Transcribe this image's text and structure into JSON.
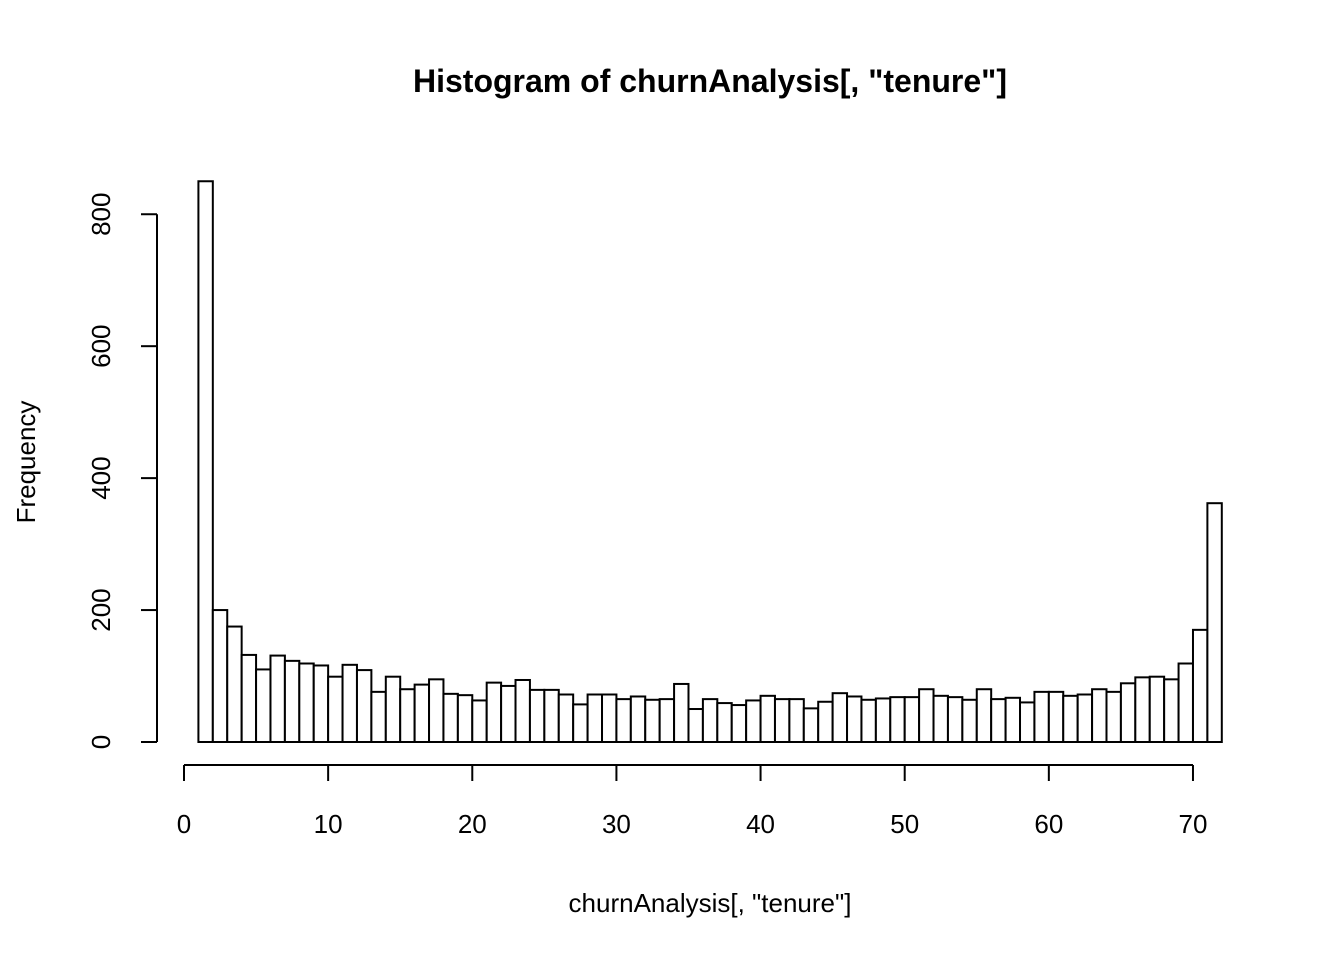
{
  "chart_data": {
    "type": "bar",
    "title": "Histogram of churnAnalysis[, \"tenure\"]",
    "xlabel": "churnAnalysis[, \"tenure\"]",
    "ylabel": "Frequency",
    "xlim": [
      0,
      72
    ],
    "ylim": [
      0,
      850
    ],
    "x_ticks": [
      0,
      10,
      20,
      30,
      40,
      50,
      60,
      70
    ],
    "y_ticks": [
      0,
      200,
      400,
      600,
      800
    ],
    "bin_width": 1,
    "bin_start": 1,
    "values": [
      850,
      200,
      175,
      132,
      110,
      131,
      123,
      119,
      116,
      99,
      117,
      109,
      76,
      99,
      80,
      87,
      95,
      73,
      71,
      63,
      90,
      85,
      94,
      79,
      79,
      72,
      57,
      72,
      72,
      65,
      69,
      64,
      65,
      88,
      50,
      65,
      59,
      56,
      63,
      70,
      65,
      65,
      51,
      61,
      74,
      69,
      64,
      66,
      68,
      68,
      80,
      70,
      68,
      64,
      80,
      65,
      67,
      60,
      76,
      76,
      70,
      72,
      80,
      76,
      89,
      98,
      99,
      95,
      119,
      170,
      362
    ],
    "grid": false,
    "legend": "none"
  }
}
